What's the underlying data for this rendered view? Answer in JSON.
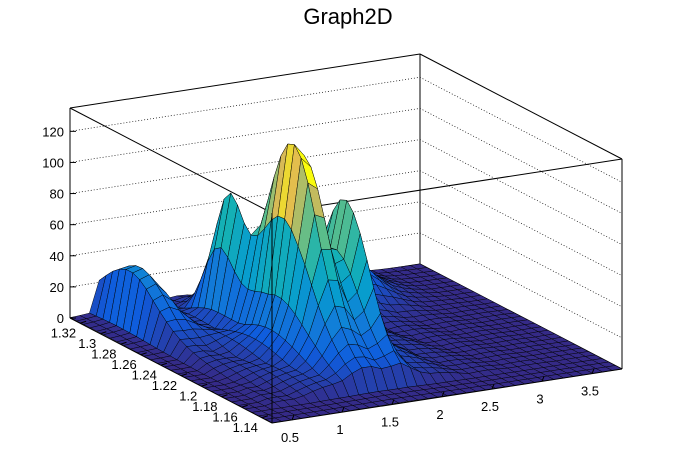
{
  "chart_data": {
    "type": "surface",
    "title": "Graph2D",
    "x_ticks": [
      "0.5",
      "1",
      "1.5",
      "2",
      "2.5",
      "3",
      "3.5"
    ],
    "y_ticks": [
      "1.14",
      "1.16",
      "1.18",
      "1.2",
      "1.22",
      "1.24",
      "1.26",
      "1.28",
      "1.3",
      "1.32"
    ],
    "z_ticks": [
      "0",
      "20",
      "40",
      "60",
      "80",
      "100",
      "120"
    ],
    "x_range": [
      0.3,
      3.8
    ],
    "y_range": [
      1.13,
      1.33
    ],
    "z_range": [
      0,
      135
    ],
    "grid": true,
    "colormap": "parula",
    "peaks": [
      {
        "x": 1.5,
        "y": 1.225,
        "z": 112
      },
      {
        "x": 1.35,
        "y": 1.28,
        "z": 72
      },
      {
        "x": 1.85,
        "y": 1.21,
        "z": 78
      },
      {
        "x": 2.55,
        "y": 1.3,
        "z": 35
      },
      {
        "x": 0.65,
        "y": 1.3,
        "z": 38
      }
    ]
  }
}
